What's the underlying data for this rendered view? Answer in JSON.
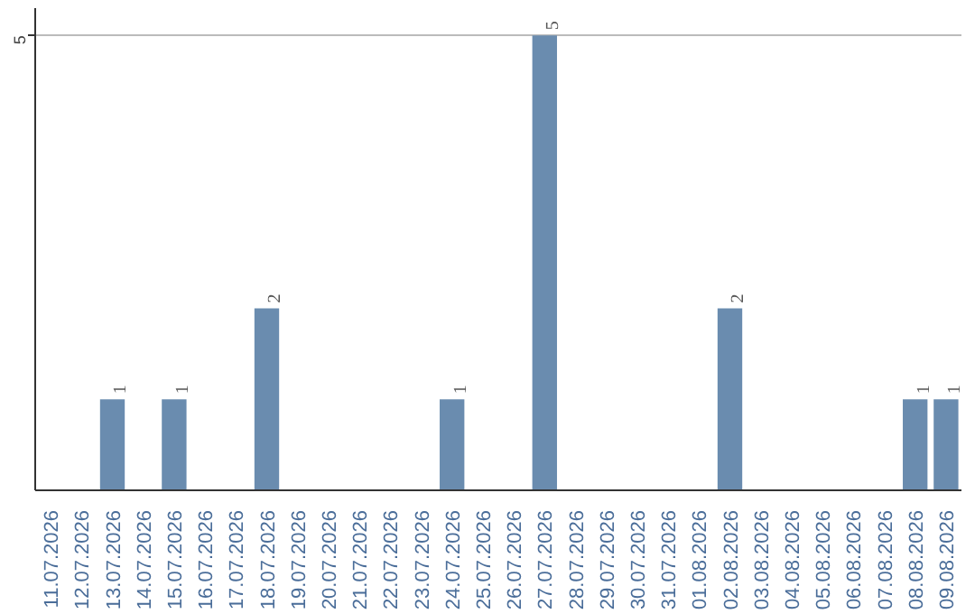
{
  "chart_data": {
    "type": "bar",
    "categories": [
      "11.07.2026",
      "12.07.2026",
      "13.07.2026",
      "14.07.2026",
      "15.07.2026",
      "16.07.2026",
      "17.07.2026",
      "18.07.2026",
      "19.07.2026",
      "20.07.2026",
      "21.07.2026",
      "22.07.2026",
      "23.07.2026",
      "24.07.2026",
      "25.07.2026",
      "26.07.2026",
      "27.07.2026",
      "28.07.2026",
      "29.07.2026",
      "30.07.2026",
      "31.07.2026",
      "01.08.2026",
      "02.08.2026",
      "03.08.2026",
      "04.08.2026",
      "05.08.2026",
      "06.08.2026",
      "07.08.2026",
      "08.08.2026",
      "09.08.2026"
    ],
    "values": [
      0,
      0,
      1,
      0,
      1,
      0,
      0,
      2,
      0,
      0,
      0,
      0,
      0,
      1,
      0,
      0,
      5,
      0,
      0,
      0,
      0,
      0,
      2,
      0,
      0,
      0,
      0,
      0,
      1,
      1
    ],
    "value_labels": [
      null,
      null,
      "1",
      null,
      "1",
      null,
      null,
      "2",
      null,
      null,
      null,
      null,
      null,
      "1",
      null,
      null,
      "5",
      null,
      null,
      null,
      null,
      null,
      "2",
      null,
      null,
      null,
      null,
      null,
      "1",
      "1"
    ],
    "color": "#6a8caf",
    "ylim": [
      0,
      5.3
    ],
    "yticks": [
      5
    ],
    "grid": "y"
  }
}
